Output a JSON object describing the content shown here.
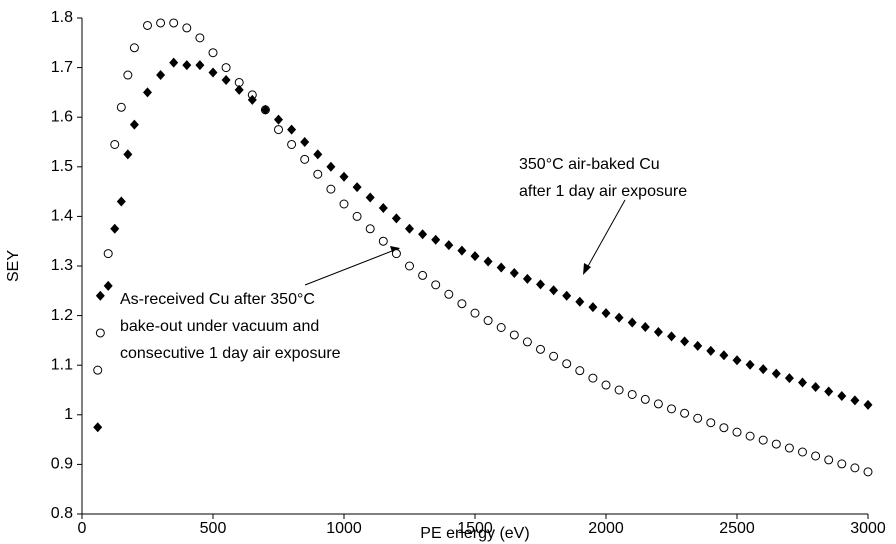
{
  "chart_data": {
    "type": "scatter",
    "xlabel": "PE energy (eV)",
    "ylabel": "SEY",
    "x": [
      60,
      70,
      100,
      125,
      150,
      175,
      200,
      250,
      300,
      350,
      400,
      450,
      500,
      550,
      600,
      650,
      700,
      750,
      800,
      850,
      900,
      950,
      1000,
      1050,
      1100,
      1150,
      1200,
      1250,
      1300,
      1350,
      1400,
      1450,
      1500,
      1550,
      1600,
      1650,
      1700,
      1750,
      1800,
      1850,
      1900,
      1950,
      2000,
      2050,
      2100,
      2150,
      2200,
      2250,
      2300,
      2350,
      2400,
      2450,
      2500,
      2550,
      2600,
      2650,
      2700,
      2750,
      2800,
      2850,
      2900,
      2950,
      3000
    ],
    "series": [
      {
        "name": "As-received Cu after 350°C bake-out under vacuum and consecutive 1 day air exposure",
        "marker": "circle",
        "color": "#000000",
        "values": [
          1.09,
          1.165,
          1.325,
          1.545,
          1.62,
          1.685,
          1.74,
          1.785,
          1.79,
          1.79,
          1.78,
          1.76,
          1.73,
          1.7,
          1.67,
          1.645,
          1.615,
          1.575,
          1.545,
          1.515,
          1.485,
          1.455,
          1.425,
          1.4,
          1.375,
          1.35,
          1.325,
          1.3,
          1.281,
          1.262,
          1.243,
          1.224,
          1.205,
          1.19,
          1.176,
          1.161,
          1.147,
          1.132,
          1.118,
          1.103,
          1.089,
          1.074,
          1.06,
          1.05,
          1.041,
          1.031,
          1.022,
          1.012,
          1.003,
          0.993,
          0.984,
          0.974,
          0.965,
          0.957,
          0.949,
          0.941,
          0.933,
          0.925,
          0.917,
          0.909,
          0.901,
          0.893,
          0.885
        ]
      },
      {
        "name": "350°C air-baked Cu after 1 day air exposure",
        "marker": "diamond",
        "color": "#000000",
        "values": [
          0.975,
          1.24,
          1.26,
          1.375,
          1.43,
          1.525,
          1.585,
          1.65,
          1.685,
          1.71,
          1.705,
          1.705,
          1.69,
          1.675,
          1.655,
          1.635,
          1.615,
          1.595,
          1.575,
          1.55,
          1.525,
          1.5,
          1.48,
          1.459,
          1.438,
          1.417,
          1.396,
          1.375,
          1.364,
          1.353,
          1.342,
          1.331,
          1.32,
          1.309,
          1.297,
          1.286,
          1.274,
          1.263,
          1.251,
          1.24,
          1.228,
          1.217,
          1.205,
          1.196,
          1.186,
          1.177,
          1.167,
          1.158,
          1.148,
          1.139,
          1.129,
          1.12,
          1.11,
          1.101,
          1.092,
          1.083,
          1.074,
          1.065,
          1.056,
          1.047,
          1.038,
          1.029,
          1.02
        ]
      }
    ],
    "annotations": [
      {
        "lines": [
          "350°C air-baked Cu",
          "after 1 day air exposure"
        ]
      },
      {
        "lines": [
          "As-received Cu after 350°C",
          "bake-out under vacuum and",
          "consecutive 1 day air exposure"
        ]
      }
    ],
    "xlim": [
      0,
      3000
    ],
    "xticks": [
      0,
      500,
      1000,
      1500,
      2000,
      2500,
      3000
    ],
    "ylim": [
      0.8,
      1.8
    ],
    "yticks": [
      {
        "value": 0.8,
        "label": "0.8"
      },
      0.9,
      {
        "value": 1,
        "label": "1"
      },
      1.1,
      1.2,
      1.3,
      1.4,
      1.5,
      1.6,
      1.7,
      {
        "value": 1.8,
        "label": "1.8"
      }
    ],
    "grid": false
  }
}
